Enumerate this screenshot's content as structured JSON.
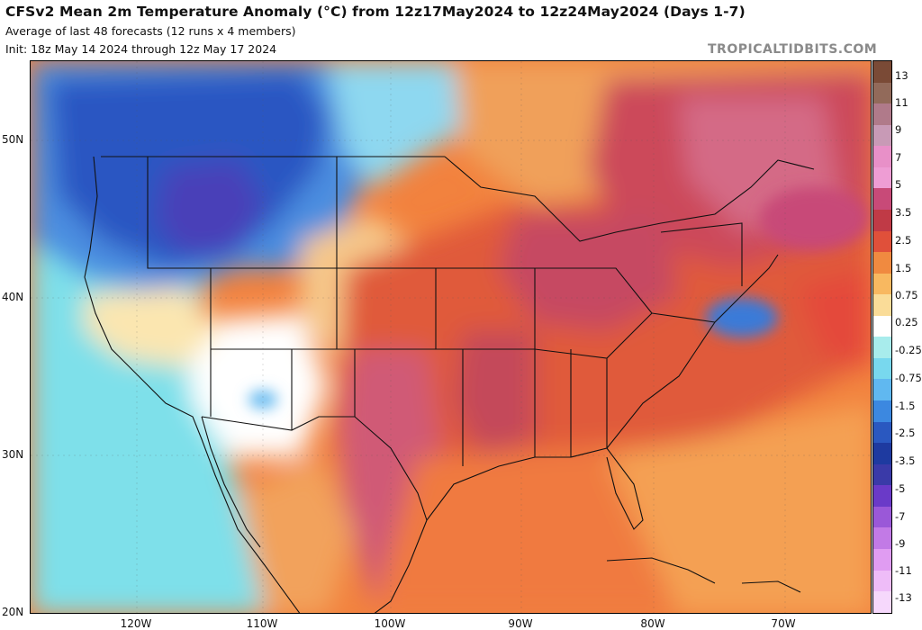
{
  "header": {
    "title": "CFSv2 Mean 2m Temperature Anomaly (°C) from 12z17May2024 to 12z24May2024 (Days 1-7)",
    "subtitle": "Average of last 48 forecasts (12 runs x 4 members)",
    "init": "Init: 18z May 14 2024 through 12z May 17 2024",
    "brand": "TROPICALTIDBITS.COM"
  },
  "map": {
    "region": "Contiguous United States, Mexico, and western Atlantic",
    "lat_labels": [
      "50N",
      "40N",
      "30N",
      "20N"
    ],
    "lon_labels": [
      "120W",
      "110W",
      "100W",
      "90W",
      "80W",
      "70W"
    ],
    "anomaly_regions": [
      {
        "name": "Pacific Northwest / northern Rockies",
        "anomaly": "-3.5 to -5",
        "color": "#4a52c8"
      },
      {
        "name": "Southwest desert",
        "anomaly": "-0.25 to 0.25",
        "color": "#ffffff"
      },
      {
        "name": "Southern Plains / Texas",
        "anomaly": "3.5 to 5",
        "color": "#d45a78"
      },
      {
        "name": "Great Lakes / Ohio Valley",
        "anomaly": "3.5 to 5",
        "color": "#c0566a"
      },
      {
        "name": "Quebec",
        "anomaly": "5 to 7",
        "color": "#c85a7e"
      },
      {
        "name": "Mid-Atlantic offshore",
        "anomaly": "-1.5 to -2.5",
        "color": "#3a7ad8"
      },
      {
        "name": "Gulf of Mexico / Caribbean",
        "anomaly": "1.5 to 3.5",
        "color": "#e8643a"
      }
    ]
  },
  "colorbar": {
    "labels": [
      "13",
      "11",
      "9",
      "7",
      "5",
      "3.5",
      "2.5",
      "1.5",
      "0.75",
      "0.25",
      "-0.25",
      "-0.75",
      "-1.5",
      "-2.5",
      "-3.5",
      "-5",
      "-7",
      "-9",
      "-11",
      "-13"
    ],
    "colors": [
      "#7a4a36",
      "#926a5a",
      "#b07a8a",
      "#c89ab6",
      "#e890c8",
      "#ee9dd4",
      "#c84a78",
      "#c03a46",
      "#e0503a",
      "#f08a40",
      "#f8b860",
      "#fadc98",
      "#ffffff",
      "#a8ecec",
      "#78d8ee",
      "#60b8f0",
      "#3c88e0",
      "#2a58c0",
      "#1e3aa0",
      "#3a3aa8",
      "#6a3ac8",
      "#9a58d8",
      "#c27ae6",
      "#e09cf2",
      "#eebcf8",
      "#f6d8fc"
    ]
  }
}
